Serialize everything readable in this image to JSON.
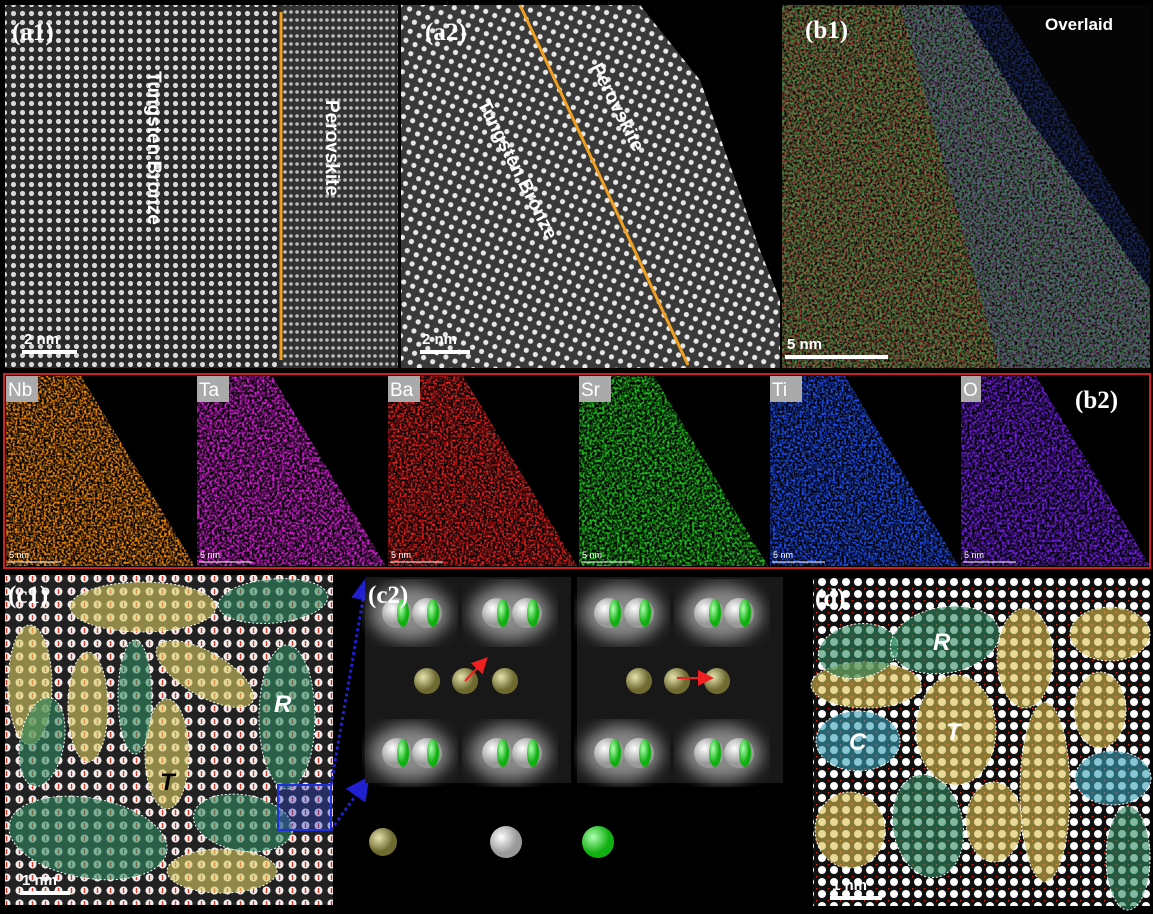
{
  "a1": {
    "label": "(a1)",
    "left_region": "Tungsten Bronze",
    "right_region": "Perovskite",
    "scale_bar": "2 nm"
  },
  "a2": {
    "label": "(a2)",
    "left_region": "Tungsten Bronze",
    "right_region": "Perovskite",
    "scale_bar": "2 nm"
  },
  "b1": {
    "label": "(b1)",
    "title": "Overlaid",
    "scale_bar": "5 nm"
  },
  "b2": {
    "label": "(b2)",
    "maps": [
      {
        "element": "Nb",
        "scale_bar": "5 nm"
      },
      {
        "element": "Ta",
        "scale_bar": "5 nm"
      },
      {
        "element": "Ba",
        "scale_bar": "5 nm"
      },
      {
        "element": "Sr",
        "scale_bar": "5 nm"
      },
      {
        "element": "Ti",
        "scale_bar": "5 nm"
      },
      {
        "element": "O",
        "scale_bar": "5 nm"
      }
    ]
  },
  "c1": {
    "label": "(c1)",
    "domains": [
      "R",
      "T"
    ],
    "scale_bar": "1 nm"
  },
  "c2": {
    "label": "(c2)"
  },
  "d": {
    "label": "(d)",
    "domains": [
      "R",
      "T",
      "C"
    ],
    "scale_bar": "1 nm"
  }
}
